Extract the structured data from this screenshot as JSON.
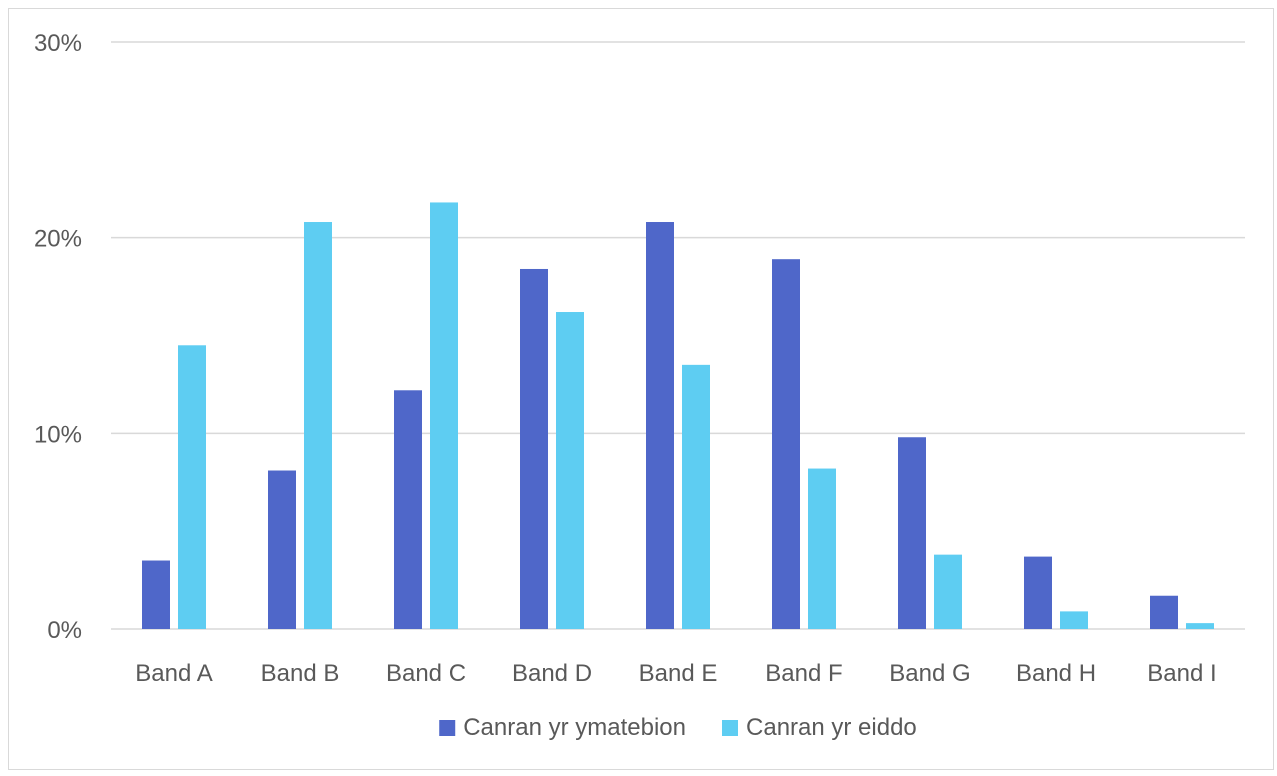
{
  "chart_data": {
    "type": "bar",
    "categories": [
      "Band A",
      "Band B",
      "Band C",
      "Band D",
      "Band E",
      "Band F",
      "Band G",
      "Band H",
      "Band I"
    ],
    "series": [
      {
        "name": "Canran yr ymatebion",
        "color": "#4f67c9",
        "values": [
          3.5,
          8.1,
          12.2,
          18.4,
          20.8,
          18.9,
          9.8,
          3.7,
          1.7
        ]
      },
      {
        "name": "Canran yr eiddo",
        "color": "#5ecdf2",
        "values": [
          14.5,
          20.8,
          21.8,
          16.2,
          13.5,
          8.2,
          3.8,
          0.9,
          0.3
        ]
      }
    ],
    "y_ticks": [
      "0%",
      "10%",
      "20%",
      "30%"
    ],
    "ylim": [
      0,
      30
    ],
    "grid": true,
    "legend_position": "bottom"
  }
}
